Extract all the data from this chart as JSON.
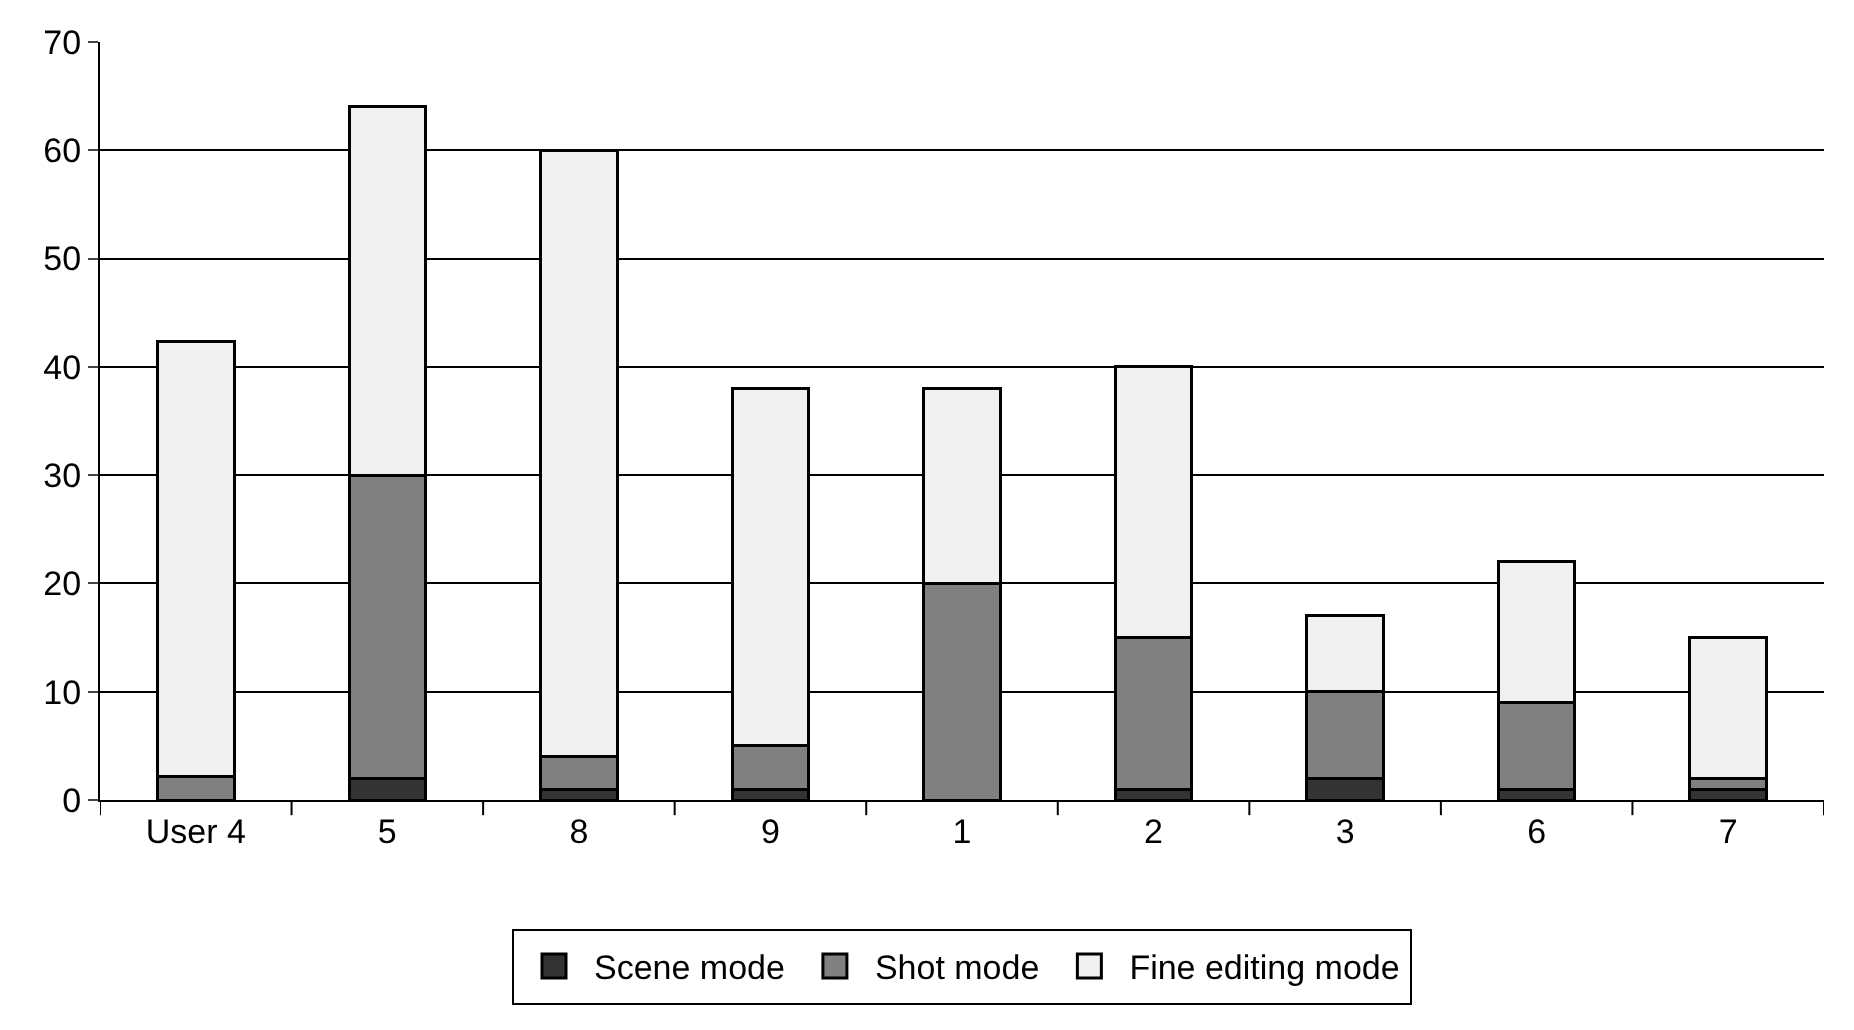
{
  "chart_data": {
    "type": "bar",
    "stacked": true,
    "categories": [
      "User 4",
      "5",
      "8",
      "9",
      "1",
      "2",
      "3",
      "6",
      "7"
    ],
    "series": [
      {
        "name": "Scene mode",
        "color": "#333333",
        "values": [
          null,
          2,
          1,
          1,
          0,
          1,
          2,
          1,
          1
        ]
      },
      {
        "name": "Shot mode",
        "color": "#808080",
        "values": [
          2.2,
          28,
          3,
          4,
          20,
          14,
          8,
          8,
          1
        ]
      },
      {
        "name": "Fine editing mode",
        "color": "#f0f0f0",
        "values": [
          40.1,
          34,
          56,
          33,
          18,
          25,
          7,
          13,
          13
        ]
      }
    ],
    "ylim": [
      0,
      70
    ],
    "yticks": [
      0,
      10,
      20,
      30,
      40,
      50,
      60,
      70
    ],
    "grid": "y",
    "legend": "bottom"
  }
}
